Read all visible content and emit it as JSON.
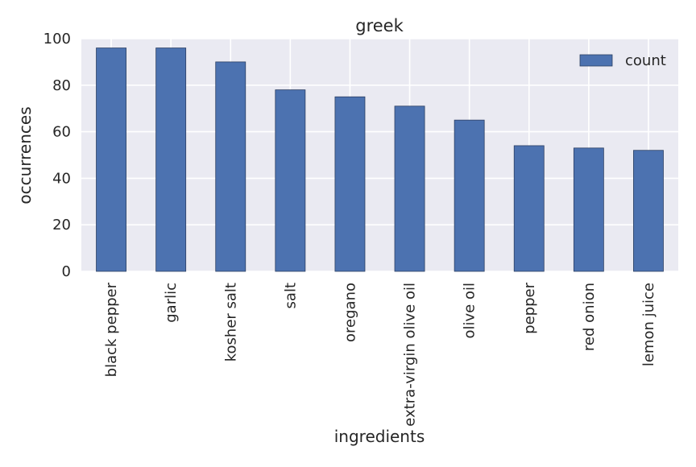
{
  "chart_data": {
    "type": "bar",
    "title": "greek",
    "xlabel": "ingredients",
    "ylabel": "occurrences",
    "categories": [
      "black pepper",
      "garlic",
      "kosher salt",
      "salt",
      "oregano",
      "extra-virgin olive oil",
      "olive oil",
      "pepper",
      "red onion",
      "lemon juice"
    ],
    "series": [
      {
        "name": "count",
        "values": [
          96,
          96,
          90,
          78,
          75,
          71,
          65,
          54,
          53,
          52
        ]
      }
    ],
    "ylim": [
      0,
      100
    ],
    "yticks": [
      "0",
      "20",
      "40",
      "60",
      "80",
      "100"
    ],
    "grid": true,
    "legend_position": "top-right",
    "colors": {
      "bar": "#4c72b0",
      "bar_edge": "#2b3f63",
      "plot_background": "#eaeaf2",
      "grid": "#ffffff"
    }
  }
}
